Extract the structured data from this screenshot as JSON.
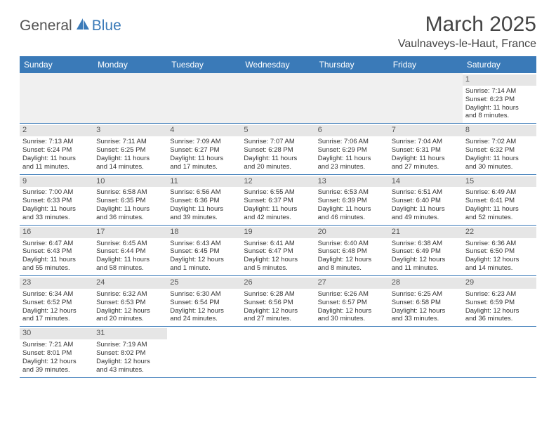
{
  "logo": {
    "part1": "General",
    "part2": "Blue"
  },
  "title": "March 2025",
  "location": "Vaulnaveys-le-Haut, France",
  "colors": {
    "header_bg": "#3a7ab8",
    "stripe_bg": "#e6e6e6",
    "border": "#3a7ab8",
    "logo_accent": "#3a7ab8"
  },
  "weekdays": [
    "Sunday",
    "Monday",
    "Tuesday",
    "Wednesday",
    "Thursday",
    "Friday",
    "Saturday"
  ],
  "weeks": [
    [
      null,
      null,
      null,
      null,
      null,
      null,
      {
        "n": "1",
        "sr": "Sunrise: 7:14 AM",
        "ss": "Sunset: 6:23 PM",
        "dl1": "Daylight: 11 hours",
        "dl2": "and 8 minutes."
      }
    ],
    [
      {
        "n": "2",
        "sr": "Sunrise: 7:13 AM",
        "ss": "Sunset: 6:24 PM",
        "dl1": "Daylight: 11 hours",
        "dl2": "and 11 minutes."
      },
      {
        "n": "3",
        "sr": "Sunrise: 7:11 AM",
        "ss": "Sunset: 6:25 PM",
        "dl1": "Daylight: 11 hours",
        "dl2": "and 14 minutes."
      },
      {
        "n": "4",
        "sr": "Sunrise: 7:09 AM",
        "ss": "Sunset: 6:27 PM",
        "dl1": "Daylight: 11 hours",
        "dl2": "and 17 minutes."
      },
      {
        "n": "5",
        "sr": "Sunrise: 7:07 AM",
        "ss": "Sunset: 6:28 PM",
        "dl1": "Daylight: 11 hours",
        "dl2": "and 20 minutes."
      },
      {
        "n": "6",
        "sr": "Sunrise: 7:06 AM",
        "ss": "Sunset: 6:29 PM",
        "dl1": "Daylight: 11 hours",
        "dl2": "and 23 minutes."
      },
      {
        "n": "7",
        "sr": "Sunrise: 7:04 AM",
        "ss": "Sunset: 6:31 PM",
        "dl1": "Daylight: 11 hours",
        "dl2": "and 27 minutes."
      },
      {
        "n": "8",
        "sr": "Sunrise: 7:02 AM",
        "ss": "Sunset: 6:32 PM",
        "dl1": "Daylight: 11 hours",
        "dl2": "and 30 minutes."
      }
    ],
    [
      {
        "n": "9",
        "sr": "Sunrise: 7:00 AM",
        "ss": "Sunset: 6:33 PM",
        "dl1": "Daylight: 11 hours",
        "dl2": "and 33 minutes."
      },
      {
        "n": "10",
        "sr": "Sunrise: 6:58 AM",
        "ss": "Sunset: 6:35 PM",
        "dl1": "Daylight: 11 hours",
        "dl2": "and 36 minutes."
      },
      {
        "n": "11",
        "sr": "Sunrise: 6:56 AM",
        "ss": "Sunset: 6:36 PM",
        "dl1": "Daylight: 11 hours",
        "dl2": "and 39 minutes."
      },
      {
        "n": "12",
        "sr": "Sunrise: 6:55 AM",
        "ss": "Sunset: 6:37 PM",
        "dl1": "Daylight: 11 hours",
        "dl2": "and 42 minutes."
      },
      {
        "n": "13",
        "sr": "Sunrise: 6:53 AM",
        "ss": "Sunset: 6:39 PM",
        "dl1": "Daylight: 11 hours",
        "dl2": "and 46 minutes."
      },
      {
        "n": "14",
        "sr": "Sunrise: 6:51 AM",
        "ss": "Sunset: 6:40 PM",
        "dl1": "Daylight: 11 hours",
        "dl2": "and 49 minutes."
      },
      {
        "n": "15",
        "sr": "Sunrise: 6:49 AM",
        "ss": "Sunset: 6:41 PM",
        "dl1": "Daylight: 11 hours",
        "dl2": "and 52 minutes."
      }
    ],
    [
      {
        "n": "16",
        "sr": "Sunrise: 6:47 AM",
        "ss": "Sunset: 6:43 PM",
        "dl1": "Daylight: 11 hours",
        "dl2": "and 55 minutes."
      },
      {
        "n": "17",
        "sr": "Sunrise: 6:45 AM",
        "ss": "Sunset: 6:44 PM",
        "dl1": "Daylight: 11 hours",
        "dl2": "and 58 minutes."
      },
      {
        "n": "18",
        "sr": "Sunrise: 6:43 AM",
        "ss": "Sunset: 6:45 PM",
        "dl1": "Daylight: 12 hours",
        "dl2": "and 1 minute."
      },
      {
        "n": "19",
        "sr": "Sunrise: 6:41 AM",
        "ss": "Sunset: 6:47 PM",
        "dl1": "Daylight: 12 hours",
        "dl2": "and 5 minutes."
      },
      {
        "n": "20",
        "sr": "Sunrise: 6:40 AM",
        "ss": "Sunset: 6:48 PM",
        "dl1": "Daylight: 12 hours",
        "dl2": "and 8 minutes."
      },
      {
        "n": "21",
        "sr": "Sunrise: 6:38 AM",
        "ss": "Sunset: 6:49 PM",
        "dl1": "Daylight: 12 hours",
        "dl2": "and 11 minutes."
      },
      {
        "n": "22",
        "sr": "Sunrise: 6:36 AM",
        "ss": "Sunset: 6:50 PM",
        "dl1": "Daylight: 12 hours",
        "dl2": "and 14 minutes."
      }
    ],
    [
      {
        "n": "23",
        "sr": "Sunrise: 6:34 AM",
        "ss": "Sunset: 6:52 PM",
        "dl1": "Daylight: 12 hours",
        "dl2": "and 17 minutes."
      },
      {
        "n": "24",
        "sr": "Sunrise: 6:32 AM",
        "ss": "Sunset: 6:53 PM",
        "dl1": "Daylight: 12 hours",
        "dl2": "and 20 minutes."
      },
      {
        "n": "25",
        "sr": "Sunrise: 6:30 AM",
        "ss": "Sunset: 6:54 PM",
        "dl1": "Daylight: 12 hours",
        "dl2": "and 24 minutes."
      },
      {
        "n": "26",
        "sr": "Sunrise: 6:28 AM",
        "ss": "Sunset: 6:56 PM",
        "dl1": "Daylight: 12 hours",
        "dl2": "and 27 minutes."
      },
      {
        "n": "27",
        "sr": "Sunrise: 6:26 AM",
        "ss": "Sunset: 6:57 PM",
        "dl1": "Daylight: 12 hours",
        "dl2": "and 30 minutes."
      },
      {
        "n": "28",
        "sr": "Sunrise: 6:25 AM",
        "ss": "Sunset: 6:58 PM",
        "dl1": "Daylight: 12 hours",
        "dl2": "and 33 minutes."
      },
      {
        "n": "29",
        "sr": "Sunrise: 6:23 AM",
        "ss": "Sunset: 6:59 PM",
        "dl1": "Daylight: 12 hours",
        "dl2": "and 36 minutes."
      }
    ],
    [
      {
        "n": "30",
        "sr": "Sunrise: 7:21 AM",
        "ss": "Sunset: 8:01 PM",
        "dl1": "Daylight: 12 hours",
        "dl2": "and 39 minutes."
      },
      {
        "n": "31",
        "sr": "Sunrise: 7:19 AM",
        "ss": "Sunset: 8:02 PM",
        "dl1": "Daylight: 12 hours",
        "dl2": "and 43 minutes."
      },
      null,
      null,
      null,
      null,
      null
    ]
  ]
}
